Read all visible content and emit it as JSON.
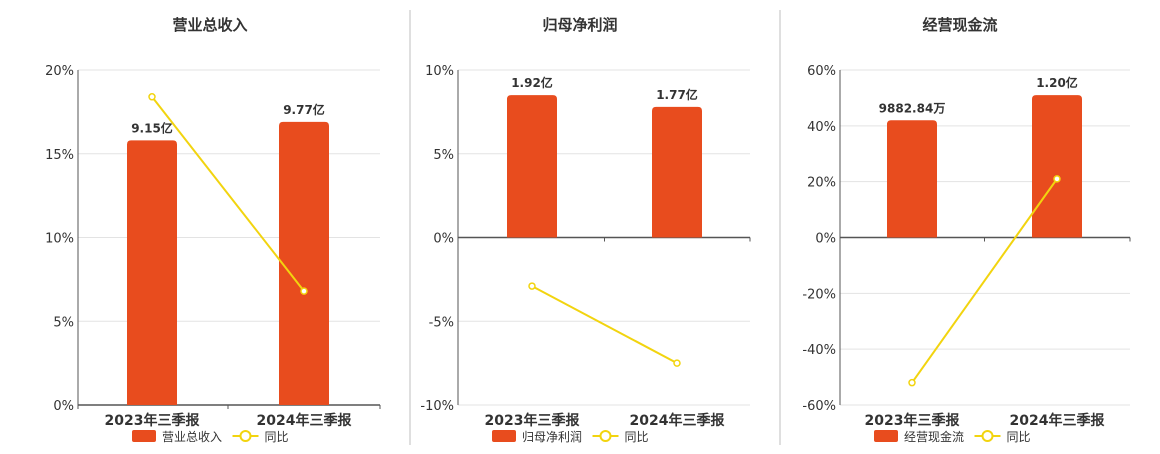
{
  "chart_data": [
    {
      "type": "bar",
      "title": "营业总收入",
      "categories": [
        "2023年三季报",
        "2024年三季报"
      ],
      "ylim": [
        0,
        20
      ],
      "yticks": [
        "0%",
        "5%",
        "10%",
        "15%",
        "20%"
      ],
      "grid": true,
      "series": [
        {
          "name": "营业总收入",
          "type": "bar",
          "values": [
            15.8,
            16.9
          ],
          "data_labels": [
            "9.15亿",
            "9.77亿"
          ],
          "color": "#E84C1E"
        },
        {
          "name": "同比",
          "type": "line",
          "values": [
            18.4,
            6.8
          ],
          "color": "#F2D40F"
        }
      ],
      "legend_position": "bottom"
    },
    {
      "type": "bar",
      "title": "归母净利润",
      "categories": [
        "2023年三季报",
        "2024年三季报"
      ],
      "ylim": [
        -10,
        10
      ],
      "yticks": [
        "-10%",
        "-5%",
        "0%",
        "5%",
        "10%"
      ],
      "grid": true,
      "series": [
        {
          "name": "归母净利润",
          "type": "bar",
          "values": [
            8.5,
            7.8
          ],
          "data_labels": [
            "1.92亿",
            "1.77亿"
          ],
          "color": "#E84C1E"
        },
        {
          "name": "同比",
          "type": "line",
          "values": [
            -2.9,
            -7.5
          ],
          "color": "#F2D40F"
        }
      ],
      "legend_position": "bottom"
    },
    {
      "type": "bar",
      "title": "经营现金流",
      "categories": [
        "2023年三季报",
        "2024年三季报"
      ],
      "ylim": [
        -60,
        60
      ],
      "yticks": [
        "-60%",
        "-40%",
        "-20%",
        "0%",
        "20%",
        "40%",
        "60%"
      ],
      "grid": true,
      "series": [
        {
          "name": "经营现金流",
          "type": "bar",
          "values": [
            42,
            51
          ],
          "data_labels": [
            "9882.84万",
            "1.20亿"
          ],
          "color": "#E84C1E"
        },
        {
          "name": "同比",
          "type": "line",
          "values": [
            21,
            -52
          ],
          "point_order_reversed": true,
          "color": "#F2D40F"
        }
      ],
      "legend_position": "bottom"
    }
  ],
  "colors": {
    "bar": "#E84C1E",
    "line": "#F2D40F",
    "axis": "#555555",
    "grid": "#E3E3E3",
    "divider": "#BFBFBF",
    "text": "#333333"
  }
}
